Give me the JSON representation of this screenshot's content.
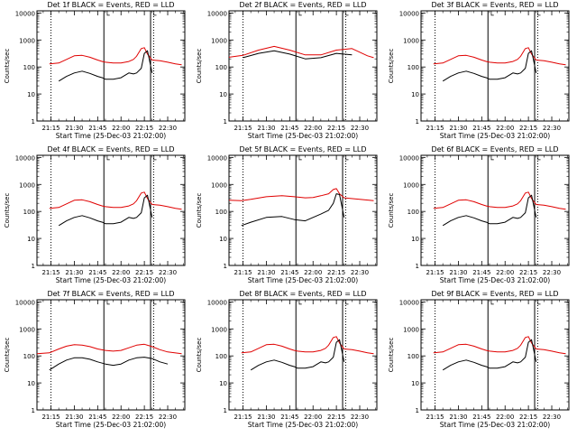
{
  "chart_data": [
    {
      "type": "line",
      "title": "Det 1f BLACK = Events, RED = LLD",
      "xlabel": "Start Time (25-Dec-03 21:02:00)",
      "ylabel": "Counts/sec",
      "yscale": "log",
      "ylim": [
        1,
        12000
      ],
      "xlim": [
        "21:06",
        "22:41"
      ],
      "x_ticks": [
        "21:15",
        "21:30",
        "21:45",
        "22:00",
        "22:15",
        "22:30"
      ],
      "y_ticks": [
        "1",
        "10",
        "100",
        "1000",
        "10000"
      ],
      "x": [
        "21:14",
        "21:20",
        "21:25",
        "21:30",
        "21:35",
        "21:40",
        "21:45",
        "21:48",
        "21:50",
        "21:55",
        "22:00",
        "22:05",
        "22:08",
        "22:10",
        "22:13",
        "22:15",
        "22:17",
        "22:20",
        "22:25",
        "22:30",
        "22:35",
        "22:39"
      ],
      "series": [
        {
          "name": "BLACK = Events",
          "color": "#000000",
          "values": [
            null,
            30,
            45,
            60,
            70,
            58,
            45,
            40,
            35,
            35,
            40,
            60,
            55,
            60,
            90,
            320,
            400,
            60,
            null,
            null,
            null,
            null
          ]
        },
        {
          "name": "RED = LLD",
          "color": "#e00000",
          "values": [
            130,
            140,
            190,
            260,
            270,
            230,
            180,
            160,
            150,
            140,
            140,
            160,
            190,
            250,
            480,
            520,
            300,
            180,
            170,
            150,
            130,
            120
          ]
        }
      ],
      "vlines": [
        {
          "x": "21:15",
          "style": "dotted"
        },
        {
          "x": "21:49",
          "style": "solid"
        },
        {
          "x": "22:19",
          "style": "solid"
        },
        {
          "x": "22:21",
          "style": "dotted"
        }
      ],
      "bracket_mark": "└",
      "grid": false,
      "legend": "none"
    },
    {
      "type": "line",
      "title": "Det 2f BLACK = Events, RED = LLD",
      "xlabel": "Start Time (25-Dec-03 21:02:00)",
      "ylabel": "Counts/sec",
      "yscale": "log",
      "ylim": [
        1,
        12000
      ],
      "xlim": [
        "21:06",
        "22:41"
      ],
      "x_ticks": [
        "21:15",
        "21:30",
        "21:45",
        "22:00",
        "22:15",
        "22:30"
      ],
      "y_ticks": [
        "1",
        "10",
        "100",
        "1000",
        "10000"
      ],
      "x": [
        "21:06",
        "21:15",
        "21:25",
        "21:35",
        "21:45",
        "21:55",
        "22:05",
        "22:15",
        "22:25",
        "22:35",
        "22:39"
      ],
      "series": [
        {
          "name": "BLACK = Events",
          "color": "#000000",
          "values": [
            null,
            220,
            320,
            400,
            300,
            200,
            220,
            320,
            280,
            null,
            null
          ]
        },
        {
          "name": "RED = LLD",
          "color": "#e00000",
          "values": [
            230,
            270,
            420,
            580,
            420,
            280,
            280,
            420,
            480,
            260,
            220
          ]
        }
      ],
      "vlines": [
        {
          "x": "21:15",
          "style": "dotted"
        },
        {
          "x": "21:49",
          "style": "solid"
        },
        {
          "x": "22:19",
          "style": "solid"
        },
        {
          "x": "22:21",
          "style": "dotted"
        }
      ],
      "bracket_mark": "└",
      "grid": false,
      "legend": "none"
    },
    {
      "type": "line",
      "title": "Det 3f BLACK = Events, RED = LLD",
      "xlabel": "Start Time (25-Dec-03 21:02:00)",
      "ylabel": "Counts/sec",
      "yscale": "log",
      "ylim": [
        1,
        12000
      ],
      "xlim": [
        "21:06",
        "22:41"
      ],
      "x_ticks": [
        "21:15",
        "21:30",
        "21:45",
        "22:00",
        "22:15",
        "22:30"
      ],
      "y_ticks": [
        "1",
        "10",
        "100",
        "1000",
        "10000"
      ],
      "x": [
        "21:14",
        "21:20",
        "21:25",
        "21:30",
        "21:35",
        "21:40",
        "21:45",
        "21:48",
        "21:50",
        "21:55",
        "22:00",
        "22:05",
        "22:08",
        "22:10",
        "22:13",
        "22:15",
        "22:17",
        "22:20",
        "22:25",
        "22:30",
        "22:35",
        "22:39"
      ],
      "series": [
        {
          "name": "BLACK = Events",
          "color": "#000000",
          "values": [
            null,
            30,
            45,
            60,
            70,
            58,
            45,
            40,
            35,
            35,
            40,
            60,
            55,
            60,
            90,
            320,
            400,
            60,
            null,
            null,
            null,
            null
          ]
        },
        {
          "name": "RED = LLD",
          "color": "#e00000",
          "values": [
            130,
            140,
            190,
            260,
            270,
            230,
            180,
            160,
            150,
            140,
            140,
            160,
            190,
            250,
            480,
            520,
            300,
            180,
            170,
            150,
            130,
            120
          ]
        }
      ],
      "vlines": [
        {
          "x": "21:15",
          "style": "dotted"
        },
        {
          "x": "21:49",
          "style": "solid"
        },
        {
          "x": "22:19",
          "style": "solid"
        },
        {
          "x": "22:21",
          "style": "dotted"
        }
      ],
      "bracket_mark": "└",
      "grid": false,
      "legend": "none"
    },
    {
      "type": "line",
      "title": "Det 4f BLACK = Events, RED = LLD",
      "xlabel": "Start Time (25-Dec-03 21:02:00)",
      "ylabel": "Counts/sec",
      "yscale": "log",
      "ylim": [
        1,
        12000
      ],
      "xlim": [
        "21:06",
        "22:41"
      ],
      "x_ticks": [
        "21:15",
        "21:30",
        "21:45",
        "22:00",
        "22:15",
        "22:30"
      ],
      "y_ticks": [
        "1",
        "10",
        "100",
        "1000",
        "10000"
      ],
      "x": [
        "21:14",
        "21:20",
        "21:25",
        "21:30",
        "21:35",
        "21:40",
        "21:45",
        "21:48",
        "21:50",
        "21:55",
        "22:00",
        "22:05",
        "22:08",
        "22:10",
        "22:13",
        "22:15",
        "22:17",
        "22:20",
        "22:25",
        "22:30",
        "22:35",
        "22:39"
      ],
      "series": [
        {
          "name": "BLACK = Events",
          "color": "#000000",
          "values": [
            null,
            30,
            45,
            60,
            70,
            58,
            45,
            40,
            35,
            35,
            40,
            60,
            55,
            60,
            90,
            320,
            400,
            60,
            null,
            null,
            null,
            null
          ]
        },
        {
          "name": "RED = LLD",
          "color": "#e00000",
          "values": [
            130,
            140,
            190,
            260,
            270,
            230,
            180,
            160,
            150,
            140,
            140,
            160,
            190,
            250,
            480,
            520,
            300,
            180,
            170,
            150,
            130,
            120
          ]
        }
      ],
      "vlines": [
        {
          "x": "21:15",
          "style": "dotted"
        },
        {
          "x": "21:49",
          "style": "solid"
        },
        {
          "x": "22:19",
          "style": "solid"
        },
        {
          "x": "22:21",
          "style": "dotted"
        }
      ],
      "bracket_mark": "└",
      "grid": false,
      "legend": "none"
    },
    {
      "type": "line",
      "title": "Det 5f BLACK = Events, RED = LLD",
      "xlabel": "Start Time (25-Dec-03 21:02:00)",
      "ylabel": "Counts/sec",
      "yscale": "log",
      "ylim": [
        1,
        12000
      ],
      "xlim": [
        "21:06",
        "22:41"
      ],
      "x_ticks": [
        "21:15",
        "21:30",
        "21:45",
        "22:00",
        "22:15",
        "22:30"
      ],
      "y_ticks": [
        "1",
        "10",
        "100",
        "1000",
        "10000"
      ],
      "x": [
        "21:06",
        "21:14",
        "21:20",
        "21:30",
        "21:40",
        "21:48",
        "21:55",
        "22:00",
        "22:05",
        "22:10",
        "22:13",
        "22:15",
        "22:17",
        "22:20",
        "22:30",
        "22:39"
      ],
      "series": [
        {
          "name": "BLACK = Events",
          "color": "#000000",
          "values": [
            null,
            30,
            40,
            60,
            65,
            50,
            45,
            60,
            80,
            110,
            200,
            450,
            420,
            60,
            null,
            null
          ]
        },
        {
          "name": "RED = LLD",
          "color": "#e00000",
          "values": [
            260,
            250,
            280,
            350,
            380,
            350,
            320,
            330,
            380,
            450,
            650,
            700,
            450,
            320,
            280,
            250
          ]
        }
      ],
      "vlines": [
        {
          "x": "21:15",
          "style": "dotted"
        },
        {
          "x": "21:49",
          "style": "solid"
        },
        {
          "x": "22:19",
          "style": "solid"
        },
        {
          "x": "22:21",
          "style": "dotted"
        }
      ],
      "bracket_mark": "└",
      "grid": false,
      "legend": "none"
    },
    {
      "type": "line",
      "title": "Det 6f BLACK = Events, RED = LLD",
      "xlabel": "Start Time (25-Dec-03 21:02:00)",
      "ylabel": "Counts/sec",
      "yscale": "log",
      "ylim": [
        1,
        12000
      ],
      "xlim": [
        "21:06",
        "22:41"
      ],
      "x_ticks": [
        "21:15",
        "21:30",
        "21:45",
        "22:00",
        "22:15",
        "22:30"
      ],
      "y_ticks": [
        "1",
        "10",
        "100",
        "1000",
        "10000"
      ],
      "x": [
        "21:14",
        "21:20",
        "21:25",
        "21:30",
        "21:35",
        "21:40",
        "21:45",
        "21:48",
        "21:50",
        "21:55",
        "22:00",
        "22:05",
        "22:08",
        "22:10",
        "22:13",
        "22:15",
        "22:17",
        "22:20",
        "22:25",
        "22:30",
        "22:35",
        "22:39"
      ],
      "series": [
        {
          "name": "BLACK = Events",
          "color": "#000000",
          "values": [
            null,
            30,
            45,
            60,
            70,
            58,
            45,
            40,
            35,
            35,
            40,
            60,
            55,
            60,
            90,
            320,
            400,
            60,
            null,
            null,
            null,
            null
          ]
        },
        {
          "name": "RED = LLD",
          "color": "#e00000",
          "values": [
            130,
            140,
            190,
            260,
            270,
            230,
            180,
            160,
            150,
            140,
            140,
            160,
            190,
            250,
            480,
            520,
            300,
            180,
            170,
            150,
            130,
            120
          ]
        }
      ],
      "vlines": [
        {
          "x": "21:15",
          "style": "dotted"
        },
        {
          "x": "21:49",
          "style": "solid"
        },
        {
          "x": "22:19",
          "style": "solid"
        },
        {
          "x": "22:21",
          "style": "dotted"
        }
      ],
      "bracket_mark": "└",
      "grid": false,
      "legend": "none"
    },
    {
      "type": "line",
      "title": "Det 7f BLACK = Events, RED = LLD",
      "xlabel": "Start Time (25-Dec-03 21:02:00)",
      "ylabel": "Counts/sec",
      "yscale": "log",
      "ylim": [
        1,
        12000
      ],
      "xlim": [
        "21:06",
        "22:41"
      ],
      "x_ticks": [
        "21:15",
        "21:30",
        "21:45",
        "22:00",
        "22:15",
        "22:30"
      ],
      "y_ticks": [
        "1",
        "10",
        "100",
        "1000",
        "10000"
      ],
      "x": [
        "21:06",
        "21:14",
        "21:20",
        "21:25",
        "21:30",
        "21:35",
        "21:40",
        "21:45",
        "21:50",
        "21:55",
        "22:00",
        "22:05",
        "22:10",
        "22:15",
        "22:20",
        "22:25",
        "22:30",
        "22:39"
      ],
      "series": [
        {
          "name": "BLACK = Events",
          "color": "#000000",
          "values": [
            null,
            30,
            50,
            70,
            85,
            85,
            75,
            60,
            50,
            45,
            50,
            70,
            85,
            90,
            80,
            60,
            50,
            null
          ]
        },
        {
          "name": "RED = LLD",
          "color": "#e00000",
          "values": [
            120,
            130,
            180,
            230,
            260,
            250,
            220,
            180,
            160,
            150,
            160,
            200,
            250,
            270,
            220,
            170,
            140,
            120
          ]
        }
      ],
      "vlines": [
        {
          "x": "21:15",
          "style": "dotted"
        },
        {
          "x": "21:49",
          "style": "solid"
        },
        {
          "x": "22:19",
          "style": "solid"
        },
        {
          "x": "22:21",
          "style": "dotted"
        }
      ],
      "bracket_mark": "└",
      "grid": false,
      "legend": "none"
    },
    {
      "type": "line",
      "title": "Det 8f BLACK = Events, RED = LLD",
      "xlabel": "Start Time (25-Dec-03 21:02:00)",
      "ylabel": "Counts/sec",
      "yscale": "log",
      "ylim": [
        1,
        12000
      ],
      "xlim": [
        "21:06",
        "22:41"
      ],
      "x_ticks": [
        "21:15",
        "21:30",
        "21:45",
        "22:00",
        "22:15",
        "22:30"
      ],
      "y_ticks": [
        "1",
        "10",
        "100",
        "1000",
        "10000"
      ],
      "x": [
        "21:14",
        "21:20",
        "21:25",
        "21:30",
        "21:35",
        "21:40",
        "21:45",
        "21:48",
        "21:50",
        "21:55",
        "22:00",
        "22:05",
        "22:08",
        "22:10",
        "22:13",
        "22:15",
        "22:17",
        "22:20",
        "22:25",
        "22:30",
        "22:35",
        "22:39"
      ],
      "series": [
        {
          "name": "BLACK = Events",
          "color": "#000000",
          "values": [
            null,
            30,
            45,
            60,
            70,
            58,
            45,
            40,
            35,
            35,
            40,
            60,
            55,
            60,
            90,
            320,
            400,
            60,
            null,
            null,
            null,
            null
          ]
        },
        {
          "name": "RED = LLD",
          "color": "#e00000",
          "values": [
            130,
            140,
            190,
            260,
            270,
            230,
            180,
            160,
            150,
            140,
            140,
            160,
            190,
            250,
            480,
            520,
            300,
            180,
            170,
            150,
            130,
            120
          ]
        }
      ],
      "vlines": [
        {
          "x": "21:15",
          "style": "dotted"
        },
        {
          "x": "21:49",
          "style": "solid"
        },
        {
          "x": "22:19",
          "style": "solid"
        },
        {
          "x": "22:21",
          "style": "dotted"
        }
      ],
      "bracket_mark": "└",
      "grid": false,
      "legend": "none"
    },
    {
      "type": "line",
      "title": "Det 9f BLACK = Events, RED = LLD",
      "xlabel": "Start Time (25-Dec-03 21:02:00)",
      "ylabel": "Counts/sec",
      "yscale": "log",
      "ylim": [
        1,
        12000
      ],
      "xlim": [
        "21:06",
        "22:41"
      ],
      "x_ticks": [
        "21:15",
        "21:30",
        "21:45",
        "22:00",
        "22:15",
        "22:30"
      ],
      "y_ticks": [
        "1",
        "10",
        "100",
        "1000",
        "10000"
      ],
      "x": [
        "21:14",
        "21:20",
        "21:25",
        "21:30",
        "21:35",
        "21:40",
        "21:45",
        "21:48",
        "21:50",
        "21:55",
        "22:00",
        "22:05",
        "22:08",
        "22:10",
        "22:13",
        "22:15",
        "22:17",
        "22:20",
        "22:25",
        "22:30",
        "22:35",
        "22:39"
      ],
      "series": [
        {
          "name": "BLACK = Events",
          "color": "#000000",
          "values": [
            null,
            30,
            45,
            60,
            70,
            58,
            45,
            40,
            35,
            35,
            40,
            60,
            55,
            60,
            90,
            320,
            400,
            60,
            null,
            null,
            null,
            null
          ]
        },
        {
          "name": "RED = LLD",
          "color": "#e00000",
          "values": [
            130,
            140,
            190,
            260,
            270,
            230,
            180,
            160,
            150,
            140,
            140,
            160,
            190,
            250,
            480,
            520,
            300,
            180,
            170,
            150,
            130,
            120
          ]
        }
      ],
      "vlines": [
        {
          "x": "21:15",
          "style": "dotted"
        },
        {
          "x": "21:49",
          "style": "solid"
        },
        {
          "x": "22:19",
          "style": "solid"
        },
        {
          "x": "22:21",
          "style": "dotted"
        }
      ],
      "bracket_mark": "└",
      "grid": false,
      "legend": "none"
    }
  ]
}
